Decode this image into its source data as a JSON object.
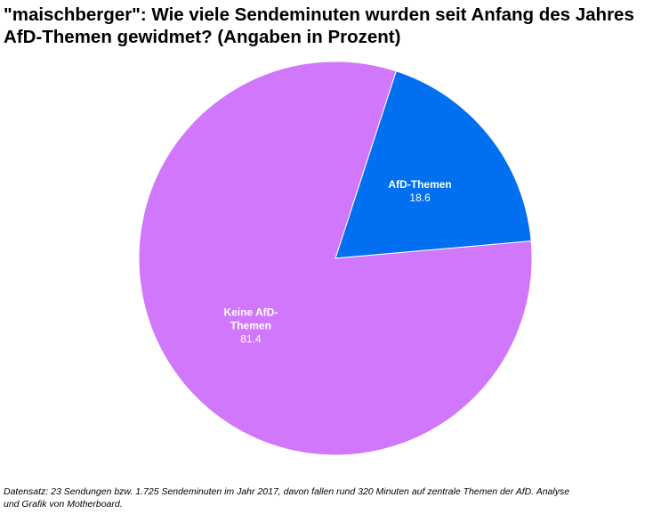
{
  "title": {
    "line1": "\"maischberger\": Wie viele Sendeminuten wurden seit Anfang des Jahres",
    "line2": "AfD-Themen gewidmet? (Angaben in Prozent)"
  },
  "chart_data": {
    "type": "pie",
    "slices": [
      {
        "name": "AfD-Themen",
        "value": 18.6,
        "color": "#0070f0",
        "label_lines": [
          "AfD-Themen"
        ]
      },
      {
        "name": "Keine AfD-Themen",
        "value": 81.4,
        "color": "#d177fc",
        "label_lines": [
          "Keine AfD-",
          "Themen"
        ]
      }
    ],
    "start_angle_deg": 18,
    "direction": "clockwise",
    "legend": "none"
  },
  "source": {
    "line1": "Datensatz: 23 Sendungen bzw. 1.725 Sendeminuten im Jahr 2017, davon fallen rund 320 Minuten auf zentrale Themen der AfD. Analyse",
    "line2": "und Grafik von Motherboard."
  }
}
